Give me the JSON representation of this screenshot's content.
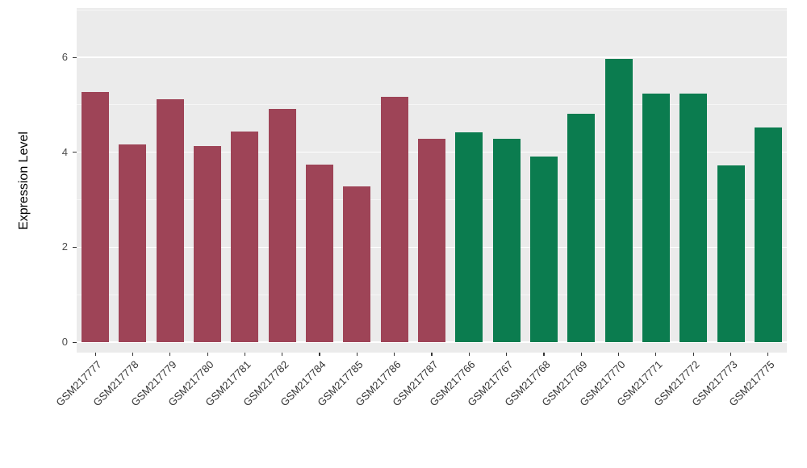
{
  "chart_data": {
    "type": "bar",
    "title": "",
    "xlabel": "",
    "ylabel": "Expression Level",
    "ylim": [
      0,
      6.6
    ],
    "yticks": [
      0,
      2,
      4,
      6
    ],
    "yticks_minor": [
      1,
      3,
      5,
      7
    ],
    "grid": true,
    "legend_position": "none",
    "categories": [
      "GSM217777",
      "GSM217778",
      "GSM217779",
      "GSM217780",
      "GSM217781",
      "GSM217782",
      "GSM217784",
      "GSM217785",
      "GSM217786",
      "GSM217787",
      "GSM217766",
      "GSM217767",
      "GSM217768",
      "GSM217769",
      "GSM217770",
      "GSM217771",
      "GSM217772",
      "GSM217773",
      "GSM217775"
    ],
    "values": [
      5.27,
      4.16,
      5.12,
      4.13,
      4.43,
      4.92,
      3.74,
      3.28,
      5.16,
      4.29,
      4.42,
      4.28,
      3.91,
      4.81,
      5.96,
      5.23,
      5.24,
      3.72,
      4.52
    ],
    "bar_groups": [
      "A",
      "A",
      "A",
      "A",
      "A",
      "A",
      "A",
      "A",
      "A",
      "A",
      "B",
      "B",
      "B",
      "B",
      "B",
      "B",
      "B",
      "B",
      "B"
    ],
    "group_colors": {
      "A": "#9e4457",
      "B": "#0b7c4f"
    }
  },
  "colors": {
    "figure_bg": "#ffffff",
    "panel_bg": "#ebebeb",
    "grid_major": "#ffffff",
    "axis_text": "#4d4d4d",
    "axis_title": "#000000",
    "tick_mark": "#333333"
  }
}
